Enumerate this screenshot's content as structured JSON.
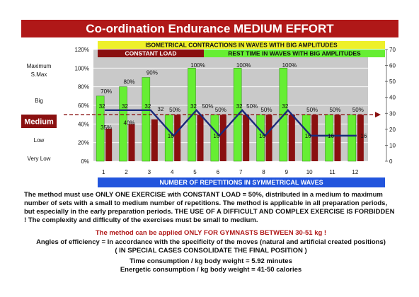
{
  "title": "Co-ordination Endurance MEDIUM EFFORT",
  "colors": {
    "title_bg": "#b01818",
    "green": "#66ee33",
    "dark_red": "#8a1010",
    "navy": "#1a2a7a",
    "yellow_band": "#eef02a",
    "blue_band": "#2255dd",
    "grey": "#c9c9c9"
  },
  "bands": {
    "isometric": "ISOMETRICAL CONTRACTIONS IN WAVES WITH BIG AMPLITUDES",
    "constant_load": "CONSTANT LOAD",
    "rest_time": "REST TIME IN WAVES WITH BIG AMPLITUDES",
    "repetitions": "NUMBER OF REPETITIONS IN SYMMETRICAL WAVES"
  },
  "left_labels": [
    "Maximum",
    "S.Max",
    "Big",
    "Medium",
    "Low",
    "Very Low"
  ],
  "chart_data": {
    "type": "bar",
    "categories": [
      "1",
      "2",
      "3",
      "4",
      "5",
      "6",
      "7",
      "8",
      "9",
      "10",
      "11",
      "12"
    ],
    "left_axis": {
      "ticks": [
        "0%",
        "20%",
        "40%",
        "60%",
        "80%",
        "100%",
        "120%"
      ],
      "ylim": [
        0,
        120
      ]
    },
    "right_axis": {
      "ticks": [
        "0",
        "10",
        "20",
        "30",
        "40",
        "50",
        "60",
        "70"
      ],
      "ylim": [
        0,
        70
      ]
    },
    "series": [
      {
        "values": [
          70,
          80,
          90,
          50,
          100,
          50,
          100,
          50,
          100,
          50,
          50,
          50
        ],
        "labels": [
          "70%",
          "80%",
          "90%",
          "50%",
          "100%",
          "50%",
          "100%",
          "50%",
          "100%",
          "50%",
          "50%",
          "50%"
        ]
      },
      {
        "values": [
          35,
          40,
          45,
          50,
          50,
          50,
          50,
          50,
          50,
          50,
          50,
          50
        ],
        "labels": [
          "35%",
          "40%",
          "",
          "",
          "",
          "",
          "",
          "",
          "",
          "",
          "",
          ""
        ]
      },
      {
        "values": [
          32,
          32,
          32,
          16,
          32,
          16,
          32,
          16,
          32,
          16,
          16,
          16
        ],
        "labels": [
          "32",
          "32",
          "32",
          "16",
          "32",
          "16",
          "32",
          "16",
          "32",
          "16",
          "16",
          "16"
        ]
      }
    ],
    "reference_line": {
      "value": 50
    },
    "extra_labels": [
      "32",
      "50%",
      "50%"
    ]
  },
  "description": {
    "p1": "The method must use ONLY ONE EXERCISE with CONSTANT LOAD = 50%, distributed in a medium to maximum number of sets with a small to medium number of repetitions. The method is applicable in all preparation periods, but especially in the early preparation periods. THE USE OF A DIFFICULT AND COMPLEX EXERCISE IS FORBIDDEN ! The complexity and difficulty of the exercises must be small to medium.",
    "p2": "The method can be applied ONLY FOR GYMNASTS BETWEEN 30-51 kg !",
    "p3": "Angles of efficiency = In accordance with the specificity of the moves  (natural and artificial created positions)",
    "p4": "( IN SPECIAL CASES CONSOLIDATE THE FINAL POSITION )",
    "p5": "Time consumption /  kg body weight =  5.92   minutes",
    "p6": "Energetic consumption /  kg body weight =  41-50  calories"
  }
}
